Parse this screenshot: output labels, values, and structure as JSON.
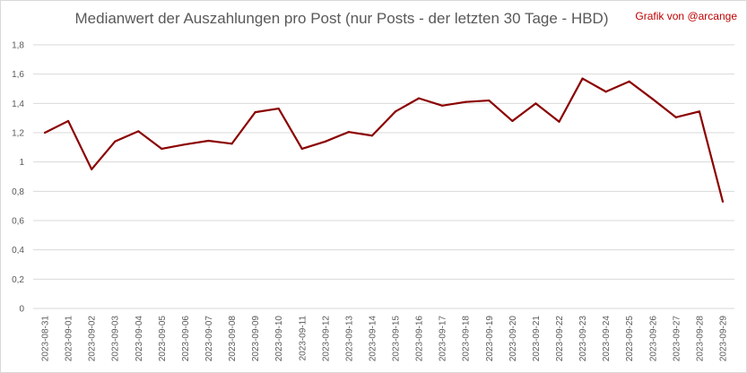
{
  "chart_data": {
    "type": "line",
    "title": "Medianwert der Auszahlungen pro Post (nur Posts - der letzten 30 Tage - HBD)",
    "credit": "Grafik von @arcange",
    "xlabel": "",
    "ylabel": "",
    "ylim": [
      0,
      1.8
    ],
    "grid": true,
    "line_color": "#8b0000",
    "yticks": [
      "0",
      "0,2",
      "0,4",
      "0,6",
      "0,8",
      "1",
      "1,2",
      "1,4",
      "1,6",
      "1,8"
    ],
    "ytick_values": [
      0,
      0.2,
      0.4,
      0.6,
      0.8,
      1.0,
      1.2,
      1.4,
      1.6,
      1.8
    ],
    "categories": [
      "2023-08-31",
      "2023-09-01",
      "2023-09-02",
      "2023-09-03",
      "2023-09-04",
      "2023-09-05",
      "2023-09-06",
      "2023-09-07",
      "2023-09-08",
      "2023-09-09",
      "2023-09-10",
      "2023-09-11",
      "2023-09-12",
      "2023-09-13",
      "2023-09-14",
      "2023-09-15",
      "2023-09-16",
      "2023-09-17",
      "2023-09-18",
      "2023-09-19",
      "2023-09-20",
      "2023-09-21",
      "2023-09-22",
      "2023-09-23",
      "2023-09-24",
      "2023-09-25",
      "2023-09-26",
      "2023-09-27",
      "2023-09-28",
      "2023-09-29"
    ],
    "values": [
      1.2,
      1.28,
      0.95,
      1.14,
      1.21,
      1.09,
      1.12,
      1.145,
      1.125,
      1.34,
      1.365,
      1.09,
      1.14,
      1.205,
      1.18,
      1.345,
      1.435,
      1.385,
      1.41,
      1.42,
      1.28,
      1.4,
      1.275,
      1.57,
      1.48,
      1.55,
      1.43,
      1.305,
      1.345,
      0.73
    ]
  }
}
